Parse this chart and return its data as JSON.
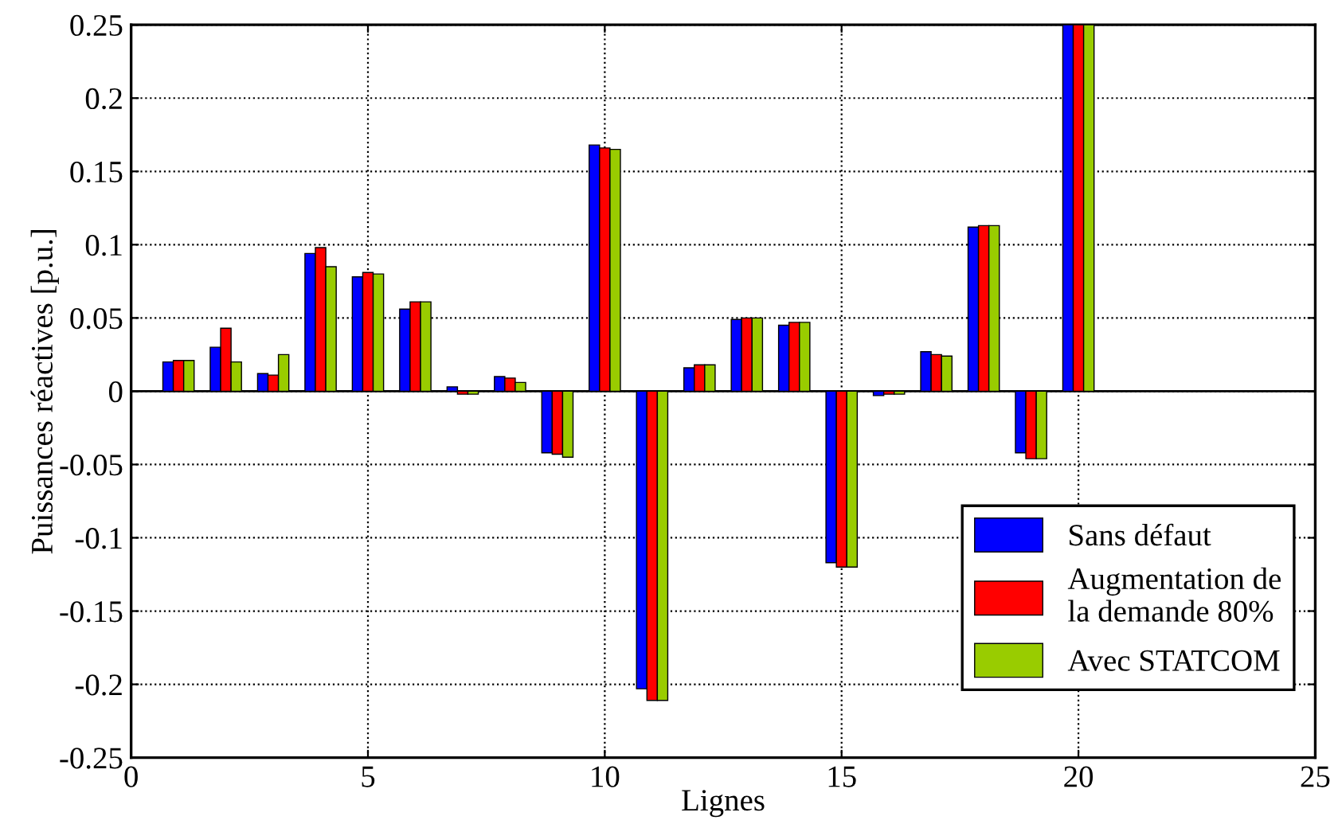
{
  "chart_data": {
    "type": "bar",
    "xlabel": "Lignes",
    "ylabel": "Puissances réactives [p.u.]",
    "x": [
      1,
      2,
      3,
      4,
      5,
      6,
      7,
      8,
      9,
      10,
      11,
      12,
      13,
      14,
      15,
      16,
      17,
      18,
      19,
      20
    ],
    "series": [
      {
        "name": "Sans défaut",
        "color": "#0000ff",
        "values": [
          0.02,
          0.03,
          0.012,
          0.094,
          0.078,
          0.056,
          0.003,
          0.01,
          -0.042,
          0.168,
          -0.203,
          0.016,
          0.049,
          0.045,
          -0.117,
          -0.003,
          0.027,
          0.112,
          -0.042,
          0.25
        ]
      },
      {
        "name": "Augmentation de\nla demande 80%",
        "color": "#ff0000",
        "values": [
          0.021,
          0.043,
          0.011,
          0.098,
          0.081,
          0.061,
          -0.002,
          0.009,
          -0.043,
          0.166,
          -0.211,
          0.018,
          0.05,
          0.047,
          -0.12,
          -0.002,
          0.025,
          0.113,
          -0.046,
          0.25
        ]
      },
      {
        "name": "Avec STATCOM",
        "color": "#99cc00",
        "values": [
          0.021,
          0.02,
          0.025,
          0.085,
          0.08,
          0.061,
          -0.002,
          0.006,
          -0.045,
          0.165,
          -0.211,
          0.018,
          0.05,
          0.047,
          -0.12,
          -0.002,
          0.024,
          0.113,
          -0.046,
          0.25
        ]
      }
    ],
    "xlim": [
      0,
      25
    ],
    "xticks": [
      0,
      5,
      10,
      15,
      20,
      25
    ],
    "ylim": [
      -0.25,
      0.25
    ],
    "yticks": [
      -0.25,
      -0.2,
      -0.15,
      -0.1,
      -0.05,
      0,
      0.05,
      0.1,
      0.15,
      0.2,
      0.25
    ],
    "grid": true,
    "legend": "bottom right"
  }
}
